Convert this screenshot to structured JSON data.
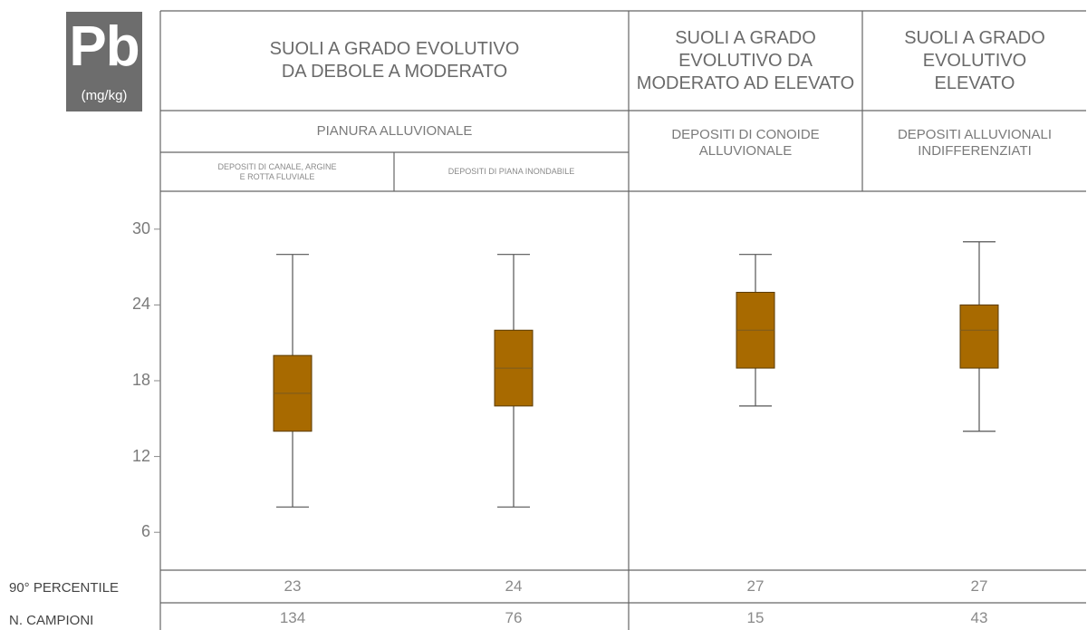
{
  "badge": {
    "symbol": "Pb",
    "unit": "(mg/kg)"
  },
  "headers": {
    "group1": [
      "SUOLI A GRADO EVOLUTIVO",
      "DA DEBOLE A MODERATO"
    ],
    "group2": [
      "SUOLI A GRADO",
      "EVOLUTIVO DA",
      "MODERATO AD ELEVATO"
    ],
    "group3": [
      "SUOLI A GRADO",
      "EVOLUTIVO",
      "ELEVATO"
    ],
    "sub1": "PIANURA ALLUVIONALE",
    "sub2": [
      "DEPOSITI DI CONOIDE",
      "ALLUVIONALE"
    ],
    "sub3": [
      "DEPOSITI ALLUVIONALI",
      "INDIFFERENZIATI"
    ],
    "subsub1": [
      "DEPOSITI DI CANALE, ARGINE",
      "E ROTTA FLUVIALE"
    ],
    "subsub2": "DEPOSITI DI PIANA INONDABILE"
  },
  "rows": {
    "percentile_label": "90° PERCENTILE",
    "samples_label": "N. CAMPIONI"
  },
  "colors": {
    "box": "#a86a00",
    "box_stroke": "#5a3a00",
    "lines": "#555555"
  },
  "chart_data": {
    "type": "box",
    "ylim": [
      3,
      33
    ],
    "yticks": [
      6,
      12,
      18,
      24,
      30
    ],
    "grid": false,
    "boxes": [
      {
        "whisker_low": 8,
        "q1": 14,
        "median": 17,
        "q3": 20,
        "whisker_high": 28,
        "percentile_90": "23",
        "n": "134"
      },
      {
        "whisker_low": 8,
        "q1": 16,
        "median": 19,
        "q3": 22,
        "whisker_high": 28,
        "percentile_90": "24",
        "n": "76"
      },
      {
        "whisker_low": 16,
        "q1": 19,
        "median": 22,
        "q3": 25,
        "whisker_high": 28,
        "percentile_90": "27",
        "n": "15"
      },
      {
        "whisker_low": 14,
        "q1": 19,
        "median": 22,
        "q3": 24,
        "whisker_high": 29,
        "percentile_90": "27",
        "n": "43"
      }
    ]
  }
}
